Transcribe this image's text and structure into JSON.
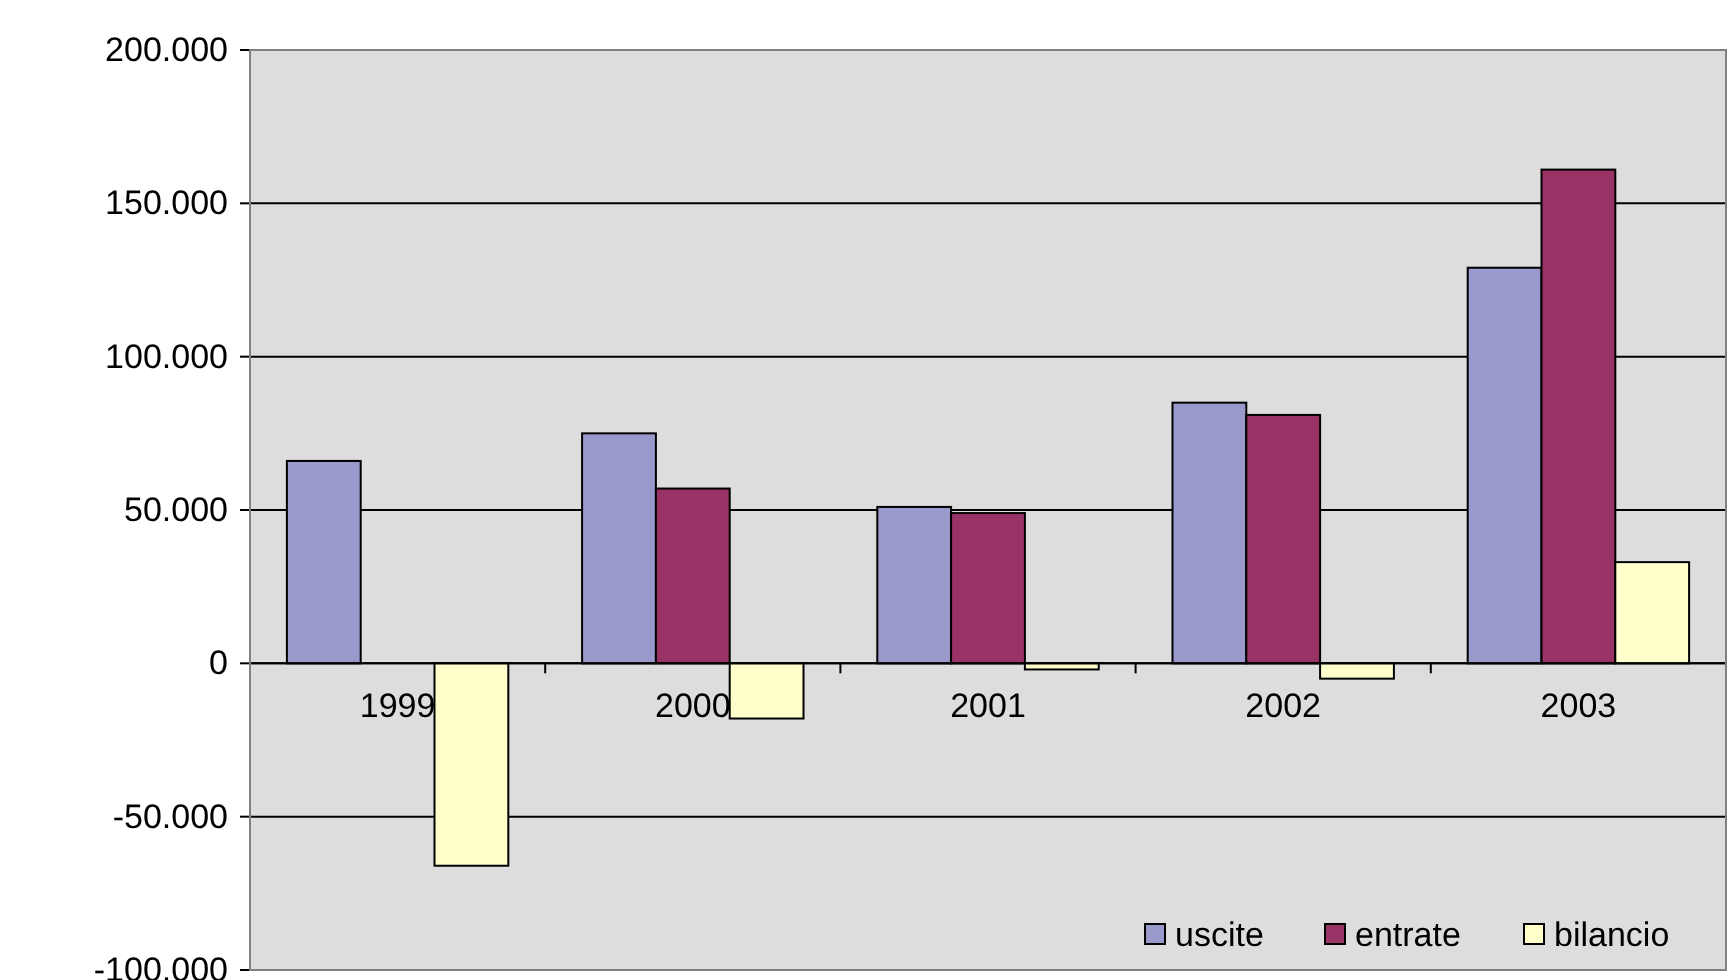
{
  "chart_data": {
    "type": "bar",
    "categories": [
      "1999",
      "2000",
      "2001",
      "2002",
      "2003"
    ],
    "series": [
      {
        "name": "uscite",
        "color": "#9999cc",
        "values": [
          66000,
          75000,
          51000,
          85000,
          129000
        ]
      },
      {
        "name": "entrate",
        "color": "#993366",
        "values": [
          null,
          57000,
          49000,
          81000,
          161000
        ]
      },
      {
        "name": "bilancio",
        "color": "#ffffcc",
        "values": [
          -66000,
          -18000,
          -2000,
          -5000,
          33000
        ]
      }
    ],
    "ylim": [
      -100000,
      200000
    ],
    "yticks": [
      {
        "value": -100000,
        "label": "-100.000"
      },
      {
        "value": -50000,
        "label": "-50.000"
      },
      0,
      {
        "value": 50000,
        "label": "50.000"
      },
      {
        "value": 100000,
        "label": "100.000"
      },
      {
        "value": 150000,
        "label": "150.000"
      },
      {
        "value": 200000,
        "label": "200.000"
      }
    ],
    "grid": "y",
    "legend": "bottom right"
  }
}
